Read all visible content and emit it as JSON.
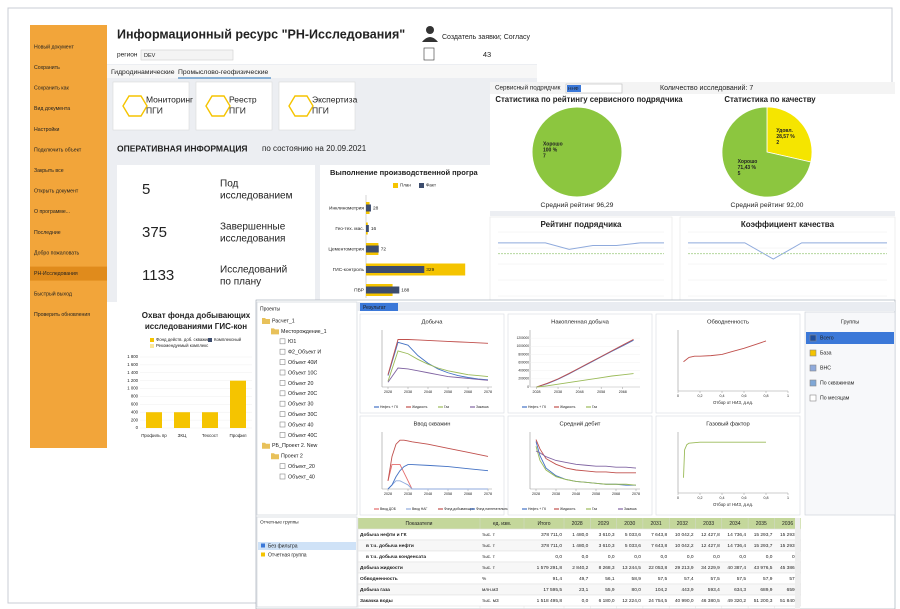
{
  "sidebar": {
    "items": [
      "Новый документ",
      "Сохранить",
      "Сохранить как",
      "Вид документа",
      "Настройки",
      "Подключить объект",
      "Закрыть все",
      "Открыть документ",
      "О программе...",
      "Последние",
      "Добро пожаловать",
      "РН-Исследования",
      "Быстрый выход",
      "Проверить обновления"
    ]
  },
  "header": {
    "title": "Информационный ресурс \"РН-Исследования\"",
    "region_label": "регион",
    "region_value": "DEV",
    "creator": "Создатель заявки; Согласу",
    "count": "43"
  },
  "tabs": [
    "Гидродинамические",
    "Промыслово-геофизические"
  ],
  "tiles": [
    [
      "Мониторинг",
      "ПГИ"
    ],
    [
      "Реестр",
      "ПГИ"
    ],
    [
      "Экспертиза",
      "ПГИ"
    ]
  ],
  "operational": {
    "title": "ОПЕРАТИВНАЯ ИНФОРМАЦИЯ",
    "date": "по состоянию на 20.09.2021",
    "stats": [
      {
        "value": "5",
        "label": [
          "Под",
          "исследованием"
        ]
      },
      {
        "value": "375",
        "label": [
          "Завершенные",
          "исследования"
        ]
      },
      {
        "value": "1133",
        "label": [
          "Исследований",
          "по плану"
        ]
      }
    ]
  },
  "program_chart": {
    "type": "hbar",
    "title": "Выполнение производственной програ",
    "categories": [
      "Инклинометрия",
      "Гео-тех. мас.",
      "Цементометрия",
      "ГИС-контроль",
      "ПВР"
    ],
    "series": [
      {
        "name": "План",
        "color": "#f5c400",
        "values": [
          20,
          10,
          70,
          560,
          150
        ]
      },
      {
        "name": "Факт",
        "color": "#3d4d6e",
        "values": [
          28,
          16,
          72,
          329,
          188
        ]
      }
    ],
    "xlim": [
      0,
      700
    ]
  },
  "contractor": {
    "label": "Сервисный подрядчик",
    "value": "ННФ",
    "count_text": "Количество исследований: 7"
  },
  "pies": [
    {
      "type": "pie",
      "title": "Статистика по рейтингу сервисного подрядчика",
      "categories": [
        "Хорошо"
      ],
      "values": [
        100
      ],
      "value_labels": [
        "100 %"
      ],
      "counts": [
        7
      ],
      "colors": [
        "#8cc63f"
      ],
      "footer": "Средний рейтинг 96,29"
    },
    {
      "type": "pie",
      "title": "Статистика по качеству",
      "categories": [
        "Удовл.",
        "Хорошо"
      ],
      "values": [
        28.57,
        71.43
      ],
      "value_labels": [
        "28,57 %",
        "71,43 %"
      ],
      "counts": [
        2,
        5
      ],
      "colors": [
        "#f5e500",
        "#8cc63f"
      ],
      "footer": "Средний рейтинг 92,00"
    }
  ],
  "rating_charts": [
    {
      "type": "line",
      "title": "Рейтинг подрядчика",
      "ylim": [
        0,
        120
      ],
      "series": [
        {
          "color": "#8faadc",
          "values": [
            100,
            100,
            100,
            88,
            95,
            95,
            100,
            100
          ]
        },
        {
          "color": "#a9d18e",
          "values": [
            80,
            80,
            80,
            80,
            80,
            80,
            80,
            80
          ]
        }
      ]
    },
    {
      "type": "line",
      "title": "Коэффициент качества",
      "ylim": [
        0,
        120
      ],
      "series": [
        {
          "color": "#8faadc",
          "values": [
            100,
            100,
            100,
            70,
            100,
            100,
            100,
            100
          ]
        },
        {
          "color": "#a9d18e",
          "values": [
            80,
            80,
            80,
            80,
            80,
            80,
            80,
            80
          ]
        }
      ]
    }
  ],
  "coverage_chart": {
    "type": "bar",
    "title": [
      "Охват фонда добывающих",
      "исследованиями ГИС-кон"
    ],
    "legend": [
      {
        "name": "Фонд действ. доб. скважин",
        "color": "#f5c400"
      },
      {
        "name": "Комплексный",
        "color": "#3d4d6e"
      },
      {
        "name": "Рекомендуемый комплекс",
        "color": "#fbe79a"
      }
    ],
    "categories": [
      "Профиль пр",
      "ЗКЦ",
      "Техсост",
      "Профил"
    ],
    "values": [
      400,
      400,
      400,
      1200
    ],
    "color": "#f5c400",
    "ylim": [
      0,
      1800
    ],
    "yticks": [
      0,
      200,
      400,
      600,
      800,
      {
        "value": 1000,
        "label": "1 000"
      },
      {
        "value": 1200,
        "label": "1 200"
      },
      {
        "value": 1400,
        "label": "1 400"
      },
      {
        "value": 1600,
        "label": "1 600"
      },
      {
        "value": 1800,
        "label": "1 800"
      }
    ]
  },
  "projects": {
    "title": "Проекты",
    "tree": [
      {
        "label": "Расчет_1",
        "children": [
          {
            "label": "Месторождение_1",
            "children": [
              {
                "label": "Ю1"
              },
              {
                "label": "Ф2_Объект И"
              },
              {
                "label": "Объект 40И"
              },
              {
                "label": "Объект 10С"
              },
              {
                "label": "Объект 20"
              },
              {
                "label": "Объект 20С"
              },
              {
                "label": "Объект 30"
              },
              {
                "label": "Объект 30С"
              },
              {
                "label": "Объект 40"
              },
              {
                "label": "Объект 40С"
              }
            ]
          }
        ]
      },
      {
        "label": "РБ_Проект 2. New",
        "children": [
          {
            "label": "Проект 2",
            "children": [
              {
                "label": "Объект_20"
              },
              {
                "label": "Объект_40"
              }
            ]
          }
        ]
      }
    ]
  },
  "report_groups": {
    "title": "Отчетные группы",
    "items": [
      "Без фильтра",
      "Отчетная группа"
    ]
  },
  "results": {
    "tab": "Результат",
    "charts": [
      {
        "type": "line",
        "title": "Добыча",
        "x": [
          2028,
          2033,
          2038,
          2043,
          2048,
          2053,
          2058,
          2063,
          2068,
          2073,
          2078
        ],
        "xlim": [
          2025,
          2080
        ],
        "xticks": [
          2028,
          2038,
          2048,
          2058,
          2068,
          2078
        ],
        "ylim": [
          0,
          600
        ],
        "series": [
          {
            "name": "Нефть + ГК",
            "color": "#4472c4",
            "values": [
              120,
              470,
              440,
              330,
              250,
              190,
              150,
              120,
              100,
              85,
              75
            ]
          },
          {
            "name": "Жидкость",
            "color": "#c0504d",
            "values": [
              130,
              500,
              500,
              495,
              490,
              485,
              480,
              475,
              470,
              465,
              460
            ]
          },
          {
            "name": "Газ",
            "color": "#9bbb59",
            "values": [
              60,
              380,
              350,
              290,
              240,
              200,
              170,
              150,
              130,
              120,
              110
            ]
          },
          {
            "name": "Закачка",
            "color": "#8064a2",
            "values": [
              50,
              200,
              190,
              170,
              150,
              130,
              110,
              100,
              90,
              80,
              70
            ]
          }
        ]
      },
      {
        "type": "line",
        "title": "Накопленная добыча",
        "x": [
          2028,
          2033,
          2038,
          2043,
          2048,
          2053,
          2058,
          2063,
          2068,
          2073
        ],
        "xlim": [
          2025,
          2076
        ],
        "xticks": [
          2028,
          2038,
          2048,
          2058,
          2068
        ],
        "ylim": [
          0,
          1400000
        ],
        "yticks": [
          0,
          {
            "value": 200000,
            "label": "200000"
          },
          {
            "value": 400000,
            "label": "400000"
          },
          {
            "value": 600000,
            "label": "600000"
          },
          {
            "value": 800000,
            "label": "800000"
          },
          {
            "value": 1000000,
            "label": "1000000"
          },
          {
            "value": 1200000,
            "label": "1200000"
          }
        ],
        "series": [
          {
            "name": "Нефть + ГК",
            "color": "#4472c4",
            "values": [
              0,
              80000,
              190000,
              320000,
              460000,
              600000,
              740000,
              880000,
              1010000,
              1150000
            ]
          },
          {
            "name": "Жидкость",
            "color": "#c0504d",
            "values": [
              0,
              90000,
              200000,
              330000,
              470000,
              610000,
              750000,
              890000,
              1030000,
              1170000
            ]
          },
          {
            "name": "Газ",
            "color": "#9bbb59",
            "values": [
              0,
              30000,
              70000,
              110000,
              150000,
              190000,
              230000,
              270000,
              300000,
              330000
            ]
          }
        ]
      },
      {
        "type": "line",
        "title": "Обводненность",
        "xlabel": "Отбор от НИЗ, д.ед.",
        "x": [
          0.05,
          0.1,
          0.15,
          0.2,
          0.3,
          0.4,
          0.5,
          0.6,
          0.7,
          0.8
        ],
        "xlim": [
          0,
          1
        ],
        "xticks": [
          0,
          {
            "value": 0.2,
            "label": "0,2"
          },
          {
            "value": 0.4,
            "label": "0,4"
          },
          {
            "value": 0.6,
            "label": "0,6"
          },
          {
            "value": 0.8,
            "label": "0,8"
          },
          1
        ],
        "ylim": [
          0,
          100
        ],
        "series": [
          {
            "name": "Обводненность",
            "color": "#c0504d",
            "values": [
              48,
              55,
              57,
              57,
              58,
              60,
              65,
              70,
              76,
              82
            ]
          }
        ]
      },
      {
        "type": "line",
        "title": "Ввод скважин",
        "x": [
          2028,
          2030,
          2032,
          2034,
          2036,
          2038,
          2040,
          2048,
          2058,
          2068,
          2078
        ],
        "xlim": [
          2025,
          2080
        ],
        "xticks": [
          2028,
          2038,
          2048,
          2058,
          2068,
          2078
        ],
        "ylim": [
          0,
          140
        ],
        "series": [
          {
            "name": "Ввод ДОБ",
            "color": "#e46c6c",
            "values": [
              20,
              60,
              60,
              60,
              40,
              20,
              0,
              0,
              0,
              0,
              0
            ]
          },
          {
            "name": "Ввод НАГ",
            "color": "#8faadc",
            "values": [
              0,
              10,
              20,
              20,
              15,
              10,
              0,
              0,
              0,
              0,
              0
            ]
          },
          {
            "name": "Фонд добывающих",
            "color": "#c0504d",
            "values": [
              20,
              80,
              110,
              120,
              120,
              118,
              116,
              110,
              100,
              90,
              80
            ]
          },
          {
            "name": "Фонд нагнетательных",
            "color": "#4472c4",
            "values": [
              0,
              10,
              30,
              45,
              55,
              60,
              60,
              58,
              55,
              50,
              45
            ]
          }
        ]
      },
      {
        "type": "line",
        "title": "Средний дебит",
        "x": [
          2028,
          2030,
          2033,
          2038,
          2043,
          2048,
          2053,
          2058,
          2063,
          2068,
          2073,
          2078
        ],
        "xlim": [
          2025,
          2080
        ],
        "xticks": [
          2028,
          2038,
          2048,
          2058,
          2068,
          2078
        ],
        "ylim": [
          0,
          60
        ],
        "series": [
          {
            "name": "Нефть + ГК",
            "color": "#4472c4",
            "values": [
              50,
              35,
              22,
              14,
              10,
              8,
              7,
              6,
              5,
              5,
              4,
              4
            ]
          },
          {
            "name": "Жидкость",
            "color": "#c0504d",
            "values": [
              52,
              42,
              32,
              26,
              22,
              20,
              19,
              18,
              18,
              17,
              17,
              17
            ]
          },
          {
            "name": "Газ",
            "color": "#9bbb59",
            "values": [
              45,
              30,
              20,
              13,
              10,
              8,
              7,
              6,
              5,
              5,
              5,
              4
            ]
          },
          {
            "name": "Закачка",
            "color": "#8064a2",
            "values": [
              40,
              38,
              34,
              30,
              28,
              26,
              25,
              24,
              24,
              23,
              23,
              22
            ]
          }
        ]
      },
      {
        "type": "line",
        "title": "Газовый фактор",
        "xlabel": "Отбор от НИЗ, д.ед.",
        "x": [
          0.05,
          0.06,
          0.08,
          0.1,
          0.2,
          0.3,
          0.4,
          0.5,
          0.6,
          0.7,
          0.8
        ],
        "xlim": [
          0,
          1
        ],
        "xticks": [
          0,
          {
            "value": 0.2,
            "label": "0,2"
          },
          {
            "value": 0.4,
            "label": "0,4"
          },
          {
            "value": 0.6,
            "label": "0,6"
          },
          {
            "value": 0.8,
            "label": "0,8"
          },
          1
        ],
        "ylim": [
          0,
          120
        ],
        "series": [
          {
            "name": "Газовый фактор",
            "color": "#9bbb59",
            "values": [
              30,
              85,
              95,
              98,
              100,
              100,
              100,
              100,
              100,
              100,
              100
            ]
          }
        ]
      }
    ],
    "groups": {
      "title": "Группы",
      "items": [
        "Всего",
        "База",
        "ВНС",
        "По скважинам",
        "По месяцам"
      ]
    }
  },
  "table": {
    "header": [
      "Показатели",
      "ед. изм.",
      "Итого",
      "2028",
      "2029",
      "2030",
      "2031",
      "2032",
      "2033",
      "2034",
      "2035",
      "2036"
    ],
    "rows": [
      [
        "Добыча нефти и ГК",
        "тыс. т",
        "378 711,0",
        "1 480,0",
        "3 610,3",
        "5 033,6",
        "7 643,8",
        "10 042,2",
        "12 427,8",
        "14 736,4",
        "15 293,7",
        "15 293,7"
      ],
      [
        "в т.ч. добыча нефти",
        "тыс. т",
        "378 711,0",
        "1 480,0",
        "3 610,3",
        "5 033,6",
        "7 643,8",
        "10 042,2",
        "12 427,8",
        "14 736,4",
        "15 293,7",
        "15 293,7"
      ],
      [
        "в т.ч. добыча конденсата",
        "тыс. т",
        "0,0",
        "0,0",
        "0,0",
        "0,0",
        "0,0",
        "0,0",
        "0,0",
        "0,0",
        "0,0",
        "0,0"
      ],
      [
        "Добыча жидкости",
        "тыс. т",
        "1 579 291,8",
        "2 840,2",
        "8 268,3",
        "13 244,5",
        "22 053,8",
        "29 213,9",
        "34 229,9",
        "40 387,4",
        "43 976,5",
        "45 386,0"
      ],
      [
        "Обводненность",
        "%",
        "91,4",
        "49,7",
        "56,1",
        "58,9",
        "57,5",
        "57,4",
        "57,5",
        "57,5",
        "57,9",
        "57,7"
      ],
      [
        "Добыча газа",
        "млн.м3",
        "17 595,5",
        "23,1",
        "55,9",
        "80,0",
        "104,2",
        "443,9",
        "593,4",
        "634,3",
        "689,9",
        "659,0"
      ],
      [
        "Закачка воды",
        "тыс. м3",
        "1 518 495,8",
        "0,0",
        "6 180,0",
        "12 224,0",
        "24 754,5",
        "40 990,0",
        "46 380,5",
        "49 320,2",
        "51 200,3",
        "51 840,0"
      ]
    ]
  }
}
